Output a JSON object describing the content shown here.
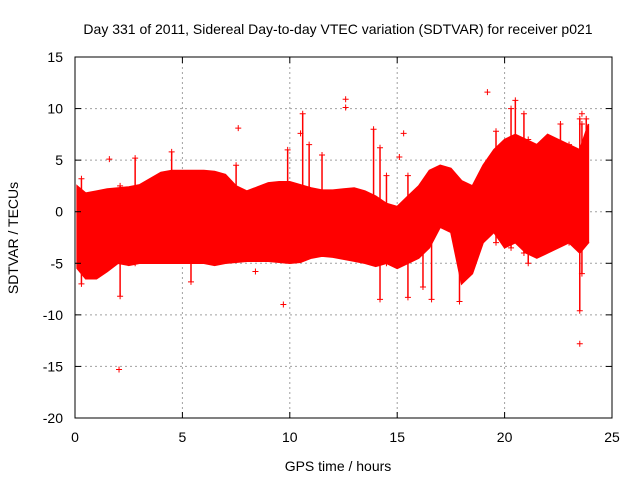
{
  "chart_data": {
    "type": "scatter",
    "title": "Day 331 of 2011, Sidereal Day-to-day VTEC variation (SDTVAR) for receiver p021",
    "xlabel": "GPS time / hours",
    "ylabel": "SDTVAR / TECUs",
    "xlim": [
      0,
      25
    ],
    "ylim": [
      -20,
      15
    ],
    "xticks": [
      0,
      5,
      10,
      15,
      20,
      25
    ],
    "yticks": [
      -20,
      -15,
      -10,
      -5,
      0,
      5,
      10,
      15
    ],
    "grid": true,
    "marker": "+",
    "color": "#ff0000",
    "series": [
      {
        "name": "SDTVAR",
        "envelope": {
          "x": [
            0.1,
            0.5,
            1.0,
            1.5,
            2.0,
            2.5,
            3.0,
            3.5,
            4.0,
            4.5,
            5.0,
            5.5,
            6.0,
            6.5,
            7.0,
            7.5,
            8.0,
            8.5,
            9.0,
            9.5,
            10.0,
            10.5,
            11.0,
            11.5,
            12.0,
            12.5,
            13.0,
            13.5,
            14.0,
            14.5,
            15.0,
            15.5,
            16.0,
            16.5,
            17.0,
            17.5,
            18.0,
            18.5,
            19.0,
            19.5,
            20.0,
            20.5,
            21.0,
            21.5,
            22.0,
            22.5,
            23.0,
            23.5,
            23.9
          ],
          "upper": [
            2.5,
            1.8,
            2.0,
            2.2,
            2.3,
            2.4,
            2.6,
            3.2,
            3.8,
            4.0,
            4.0,
            4.0,
            4.0,
            3.9,
            3.6,
            2.5,
            2.0,
            2.4,
            2.8,
            2.9,
            2.9,
            2.6,
            2.3,
            2.1,
            2.1,
            2.2,
            2.3,
            2.0,
            1.5,
            0.8,
            0.5,
            1.5,
            2.5,
            4.0,
            4.5,
            4.2,
            3.0,
            2.5,
            4.5,
            6.0,
            7.0,
            7.5,
            7.0,
            6.5,
            7.5,
            7.0,
            6.5,
            6.0,
            8.5
          ],
          "lower": [
            -5.5,
            -6.5,
            -6.5,
            -5.8,
            -5.0,
            -5.2,
            -5.0,
            -5.0,
            -5.0,
            -5.0,
            -5.0,
            -5.0,
            -5.0,
            -5.2,
            -5.0,
            -4.9,
            -4.8,
            -4.8,
            -4.8,
            -4.9,
            -5.0,
            -4.9,
            -4.5,
            -4.3,
            -4.4,
            -4.6,
            -4.8,
            -5.0,
            -5.3,
            -5.0,
            -5.5,
            -5.0,
            -4.5,
            -3.5,
            -1.5,
            -2.0,
            -7.0,
            -6.0,
            -3.0,
            -2.0,
            -3.5,
            -3.0,
            -4.0,
            -4.5,
            -4.0,
            -3.5,
            -3.0,
            -4.0,
            -3.0
          ]
        },
        "spikes": [
          {
            "x": 0.3,
            "low": -7.0,
            "high": 3.2
          },
          {
            "x": 2.1,
            "low": -8.2,
            "high": 2.5
          },
          {
            "x": 2.8,
            "low": -5.0,
            "high": 5.2
          },
          {
            "x": 4.5,
            "low": 3.0,
            "high": 5.8
          },
          {
            "x": 5.4,
            "low": -6.8,
            "high": 3.5
          },
          {
            "x": 7.5,
            "low": -3.0,
            "high": 4.5
          },
          {
            "x": 9.9,
            "low": -4.0,
            "high": 6.0
          },
          {
            "x": 10.6,
            "low": -3.0,
            "high": 9.5
          },
          {
            "x": 10.9,
            "low": -4.0,
            "high": 6.5
          },
          {
            "x": 11.5,
            "low": -3.0,
            "high": 5.5
          },
          {
            "x": 13.9,
            "low": -4.0,
            "high": 8.0
          },
          {
            "x": 14.2,
            "low": -8.5,
            "high": 6.2
          },
          {
            "x": 14.5,
            "low": -5.0,
            "high": 3.5
          },
          {
            "x": 15.5,
            "low": -8.3,
            "high": 3.5
          },
          {
            "x": 16.2,
            "low": -7.3,
            "high": 2.0
          },
          {
            "x": 16.6,
            "low": -8.5,
            "high": 2.5
          },
          {
            "x": 17.9,
            "low": -8.7,
            "high": 0.0
          },
          {
            "x": 19.6,
            "low": -3.0,
            "high": 7.8
          },
          {
            "x": 20.3,
            "low": -3.5,
            "high": 10.0
          },
          {
            "x": 20.5,
            "low": -2.5,
            "high": 10.8
          },
          {
            "x": 20.9,
            "low": -4.0,
            "high": 9.5
          },
          {
            "x": 21.1,
            "low": -5.0,
            "high": 7.0
          },
          {
            "x": 22.6,
            "low": -2.5,
            "high": 8.5
          },
          {
            "x": 23.0,
            "low": -3.0,
            "high": 6.5
          },
          {
            "x": 23.5,
            "low": -9.6,
            "high": 9.0
          },
          {
            "x": 23.6,
            "low": -6.0,
            "high": 8.5
          },
          {
            "x": 23.8,
            "low": -3.0,
            "high": 9.0
          }
        ],
        "outliers": [
          {
            "x": 1.6,
            "y": 5.1
          },
          {
            "x": 2.05,
            "y": -15.3
          },
          {
            "x": 7.6,
            "y": 8.1
          },
          {
            "x": 8.4,
            "y": -5.8
          },
          {
            "x": 9.7,
            "y": -9.0
          },
          {
            "x": 10.5,
            "y": 7.6
          },
          {
            "x": 12.6,
            "y": 10.9
          },
          {
            "x": 12.6,
            "y": 10.1
          },
          {
            "x": 15.3,
            "y": 7.6
          },
          {
            "x": 15.1,
            "y": 5.3
          },
          {
            "x": 19.2,
            "y": 11.6
          },
          {
            "x": 23.5,
            "y": -12.8
          },
          {
            "x": 23.6,
            "y": 9.5
          }
        ]
      }
    ]
  }
}
